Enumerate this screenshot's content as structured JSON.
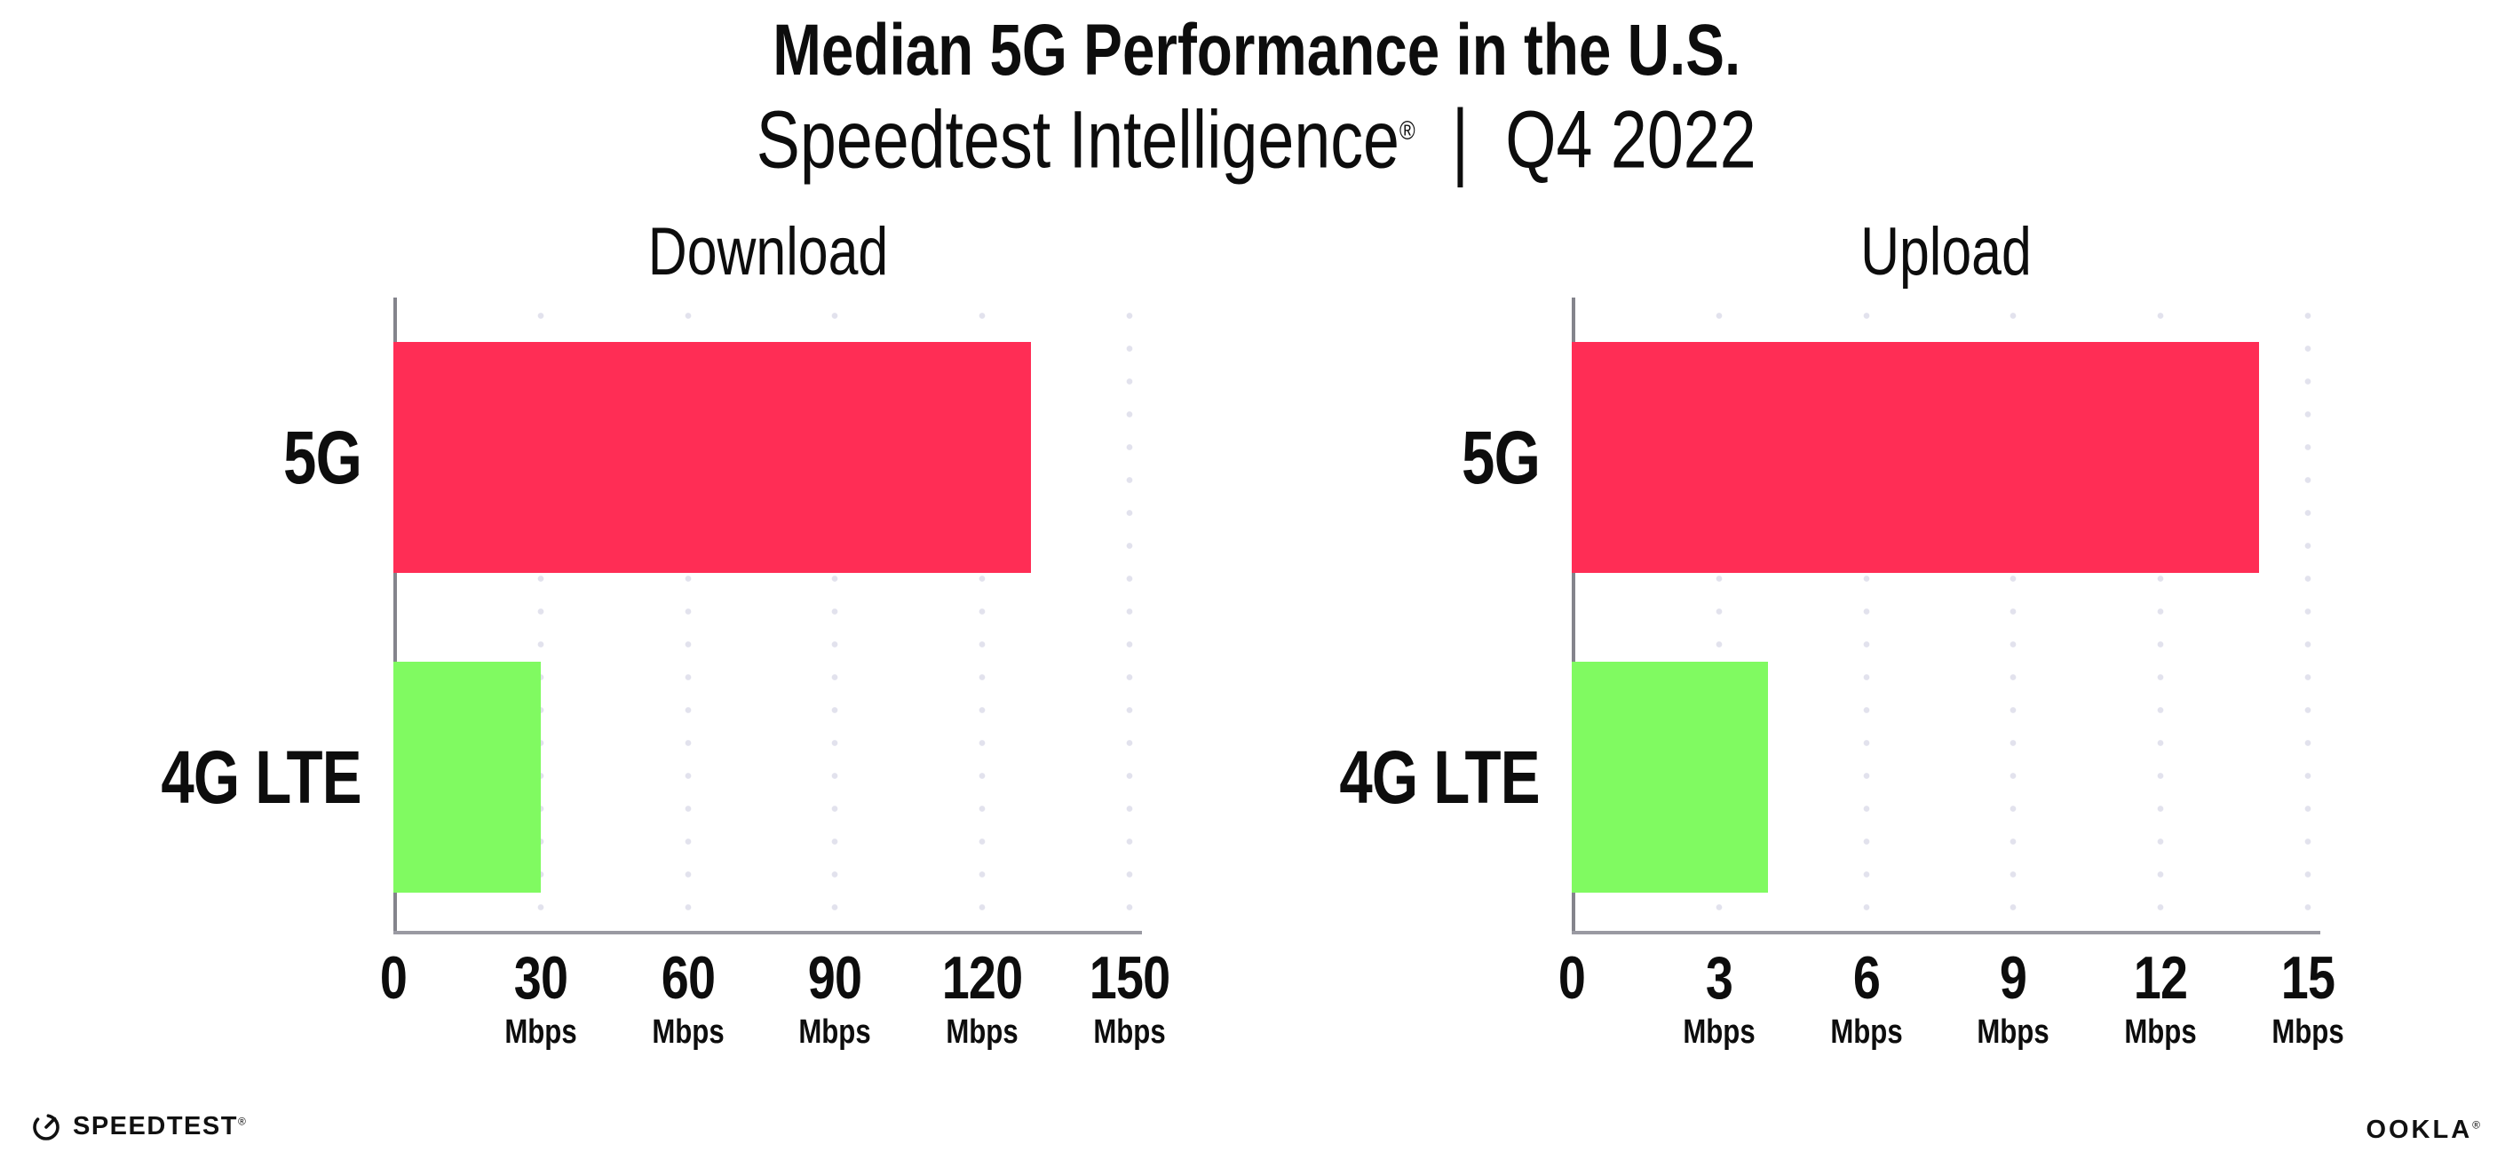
{
  "header": {
    "title": "Median 5G Performance in the U.S.",
    "subtitle_brand": "Speedtest Intelligence",
    "subtitle_reg": "®",
    "subtitle_separator": "|",
    "subtitle_period": "Q4 2022"
  },
  "chart_data": [
    {
      "type": "bar",
      "orientation": "horizontal",
      "title": "Download",
      "categories": [
        "5G",
        "4G LTE"
      ],
      "values": [
        130,
        30
      ],
      "unit": "Mbps",
      "xlim": [
        0,
        150
      ],
      "xticks": [
        0,
        30,
        60,
        90,
        120,
        150
      ],
      "bar_colors": [
        "#FF2D55",
        "#80FA61"
      ],
      "grid": "dotted-vertical",
      "legend": "none"
    },
    {
      "type": "bar",
      "orientation": "horizontal",
      "title": "Upload",
      "categories": [
        "5G",
        "4G LTE"
      ],
      "values": [
        14,
        4
      ],
      "unit": "Mbps",
      "xlim": [
        0,
        15
      ],
      "xticks": [
        0,
        3,
        6,
        9,
        12,
        15
      ],
      "bar_colors": [
        "#FF2D55",
        "#80FA61"
      ],
      "grid": "dotted-vertical",
      "legend": "none"
    }
  ],
  "footer": {
    "speedtest_logo_text": "SPEEDTEST",
    "speedtest_reg": "®",
    "ookla_logo_text": "OOKLA",
    "ookla_reg": "®"
  },
  "colors": {
    "bar_5g": "#FF2D55",
    "bar_4g_lte": "#80FA61",
    "axis": "#9a9aa2",
    "gridline": "#e2e2ed",
    "text": "#0d0d0d",
    "background": "#ffffff"
  }
}
